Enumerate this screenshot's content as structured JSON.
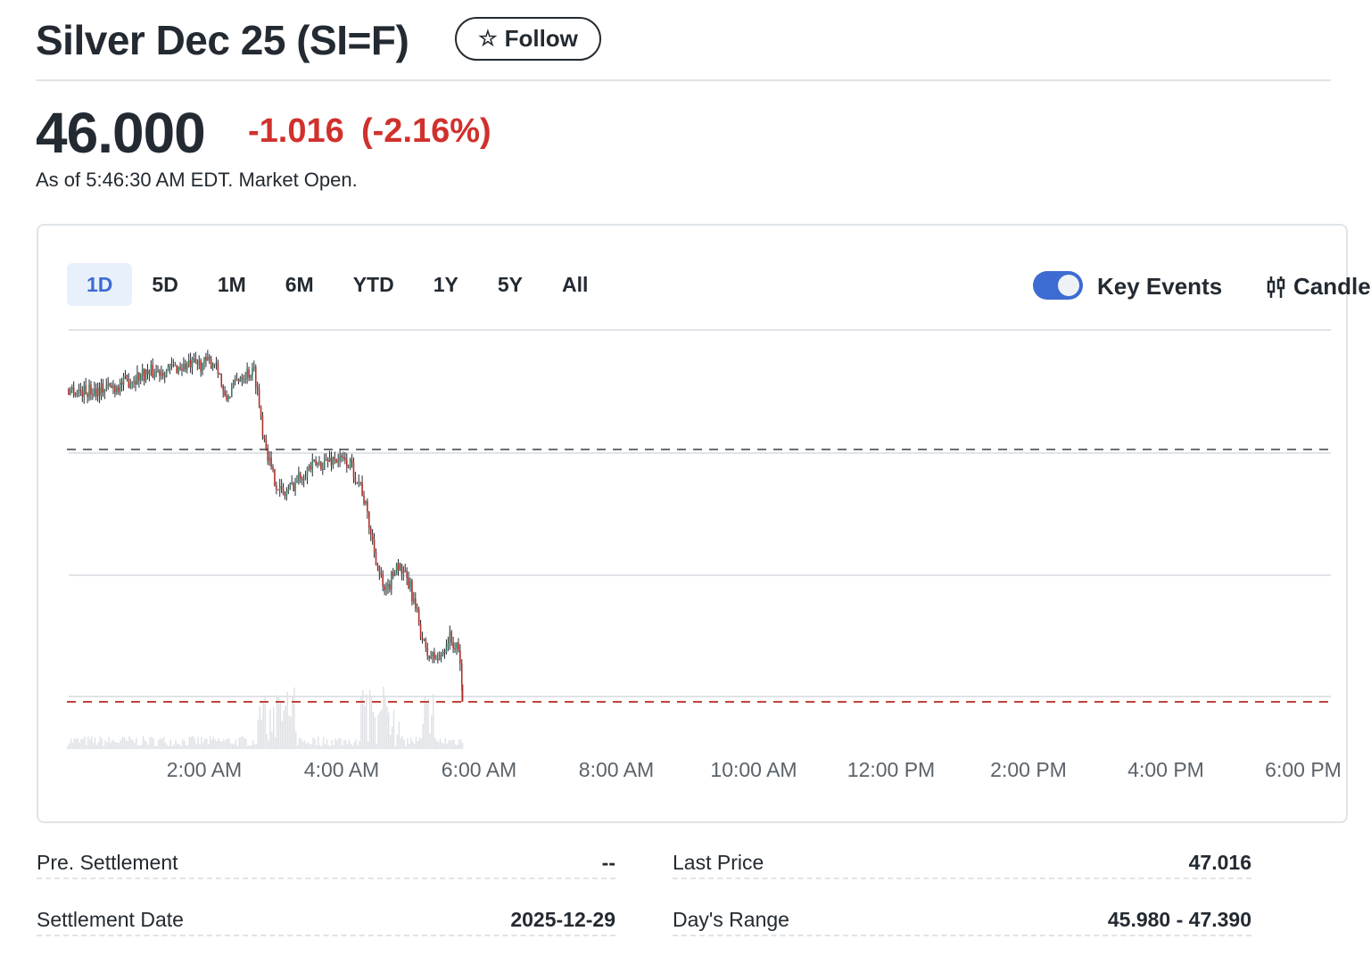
{
  "header": {
    "title": "Silver Dec 25 (SI=F)",
    "follow_label": "Follow",
    "follow_icon": "star-outline-icon"
  },
  "quote": {
    "price": "46.000",
    "change": "-1.016",
    "change_pct": "(-2.16%)",
    "as_of": "As of 5:46:30 AM EDT. Market Open.",
    "change_color": "#d0312d"
  },
  "chart": {
    "ranges": [
      "1D",
      "5D",
      "1M",
      "6M",
      "YTD",
      "1Y",
      "5Y",
      "All"
    ],
    "active_range": "1D",
    "key_events_label": "Key Events",
    "key_events_on": true,
    "candle_label": "Candle",
    "x_labels": [
      "2:00 AM",
      "4:00 AM",
      "6:00 AM",
      "8:00 AM",
      "10:00 AM",
      "12:00 PM",
      "2:00 PM",
      "4:00 PM",
      "6:00 PM"
    ],
    "x_label_hours": [
      2,
      4,
      6,
      8,
      10,
      12,
      14,
      16,
      18
    ],
    "previous_close": 47.016,
    "last": 46.0,
    "colors": {
      "up": "#3d7a66",
      "down": "#b0322a",
      "flat": "#232a31",
      "volume": "#dfe2e6",
      "prev_close_line": "#6b6f73",
      "last_line": "#c0433c"
    },
    "price_path": [
      [
        0,
        47.26
      ],
      [
        16,
        47.25
      ],
      [
        43,
        47.27
      ],
      [
        66,
        47.32
      ],
      [
        101,
        47.35
      ],
      [
        131,
        47.37
      ],
      [
        138,
        47.21
      ],
      [
        152,
        47.32
      ],
      [
        164,
        47.33
      ],
      [
        171,
        47.1
      ],
      [
        179,
        46.92
      ],
      [
        189,
        46.83
      ],
      [
        210,
        46.94
      ],
      [
        234,
        46.98
      ],
      [
        247,
        46.96
      ],
      [
        257,
        46.87
      ],
      [
        269,
        46.6
      ],
      [
        278,
        46.42
      ],
      [
        288,
        46.56
      ],
      [
        300,
        46.46
      ],
      [
        314,
        46.19
      ],
      [
        325,
        46.17
      ],
      [
        334,
        46.26
      ],
      [
        343,
        46.19
      ],
      [
        346,
        46.0
      ]
    ]
  },
  "stats": [
    {
      "label": "Pre. Settlement",
      "value": "--"
    },
    {
      "label": "Last Price",
      "value": "47.016"
    },
    {
      "label": "Settlement Date",
      "value": "2025-12-29"
    },
    {
      "label": "Day's Range",
      "value": "45.980 - 47.390"
    }
  ]
}
